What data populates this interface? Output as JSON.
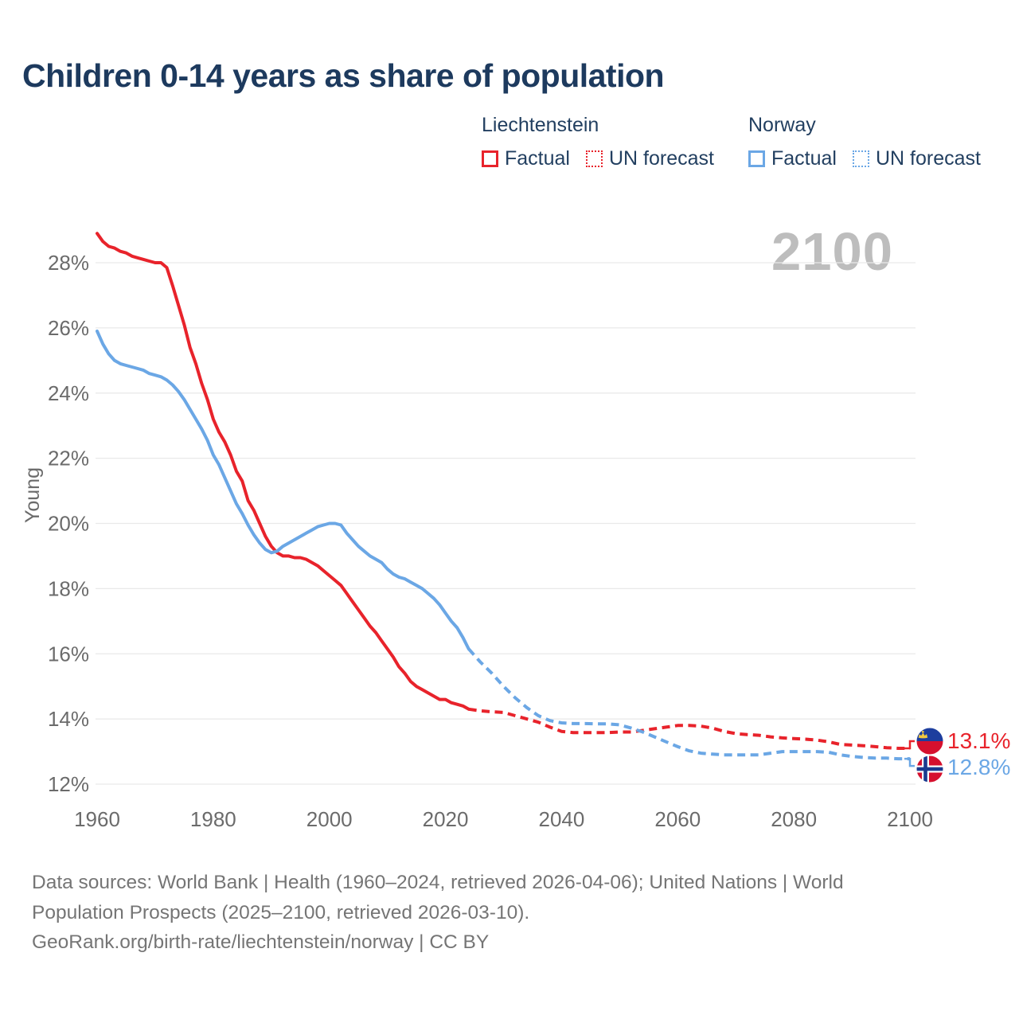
{
  "header": {
    "title": "Children 0-14 years as share of population"
  },
  "legend": {
    "liechtenstein": {
      "country": "Liechtenstein",
      "factual_label": "Factual",
      "forecast_label": "UN forecast"
    },
    "norway": {
      "country": "Norway",
      "factual_label": "Factual",
      "forecast_label": "UN forecast"
    }
  },
  "watermark": "2100",
  "axes": {
    "y_title": "Young",
    "y_ticks": [
      {
        "value": 28,
        "label": "28%"
      },
      {
        "value": 26,
        "label": "26%"
      },
      {
        "value": 24,
        "label": "24%"
      },
      {
        "value": 22,
        "label": "22%"
      },
      {
        "value": 20,
        "label": "20%"
      },
      {
        "value": 18,
        "label": "18%"
      },
      {
        "value": 16,
        "label": "16%"
      },
      {
        "value": 14,
        "label": "14%"
      },
      {
        "value": 12,
        "label": "12%"
      }
    ],
    "x_ticks": [
      {
        "value": 1960,
        "label": "1960"
      },
      {
        "value": 1980,
        "label": "1980"
      },
      {
        "value": 2000,
        "label": "2000"
      },
      {
        "value": 2020,
        "label": "2020"
      },
      {
        "value": 2040,
        "label": "2040"
      },
      {
        "value": 2060,
        "label": "2060"
      },
      {
        "value": 2080,
        "label": "2080"
      },
      {
        "value": 2100,
        "label": "2100"
      }
    ]
  },
  "end_labels": {
    "liechtenstein": {
      "label": "13.1%",
      "flag": "liechtenstein-flag"
    },
    "norway": {
      "label": "12.8%",
      "flag": "norway-flag"
    }
  },
  "footer": {
    "lines": [
      "Data sources: World Bank | Health (1960–2024, retrieved 2026-04-06); United Nations | World",
      "Population Prospects (2025–2100, retrieved 2026-03-10).",
      "GeoRank.org/birth-rate/liechtenstein/norway | CC BY"
    ]
  },
  "colors": {
    "liechtenstein_line": "#e8232b",
    "norway_line": "#6ba7e5",
    "title_text": "#1d3a5e",
    "legend_text": "#223f60",
    "axis_text": "#6b6b6b",
    "gridline": "#e9e9e9",
    "watermark": "#bdbdbd",
    "footer_text": "#757575",
    "flag_li_blue": "#1d3e9e",
    "flag_li_red": "#d6102e",
    "flag_li_crown": "#f2c840",
    "flag_no_red": "#d6102e",
    "flag_no_navy": "#1b3a8f",
    "flag_no_white": "#ffffff"
  },
  "chart_data": {
    "type": "line",
    "title": "Children 0-14 years as share of population",
    "xlabel": "",
    "ylabel": "Young",
    "xlim": [
      1960,
      2100
    ],
    "ylim": [
      12,
      28
    ],
    "grid": true,
    "legend_position": "top-right",
    "series": [
      {
        "name": "Liechtenstein Factual",
        "style": "solid",
        "color": "#e8232b",
        "points": [
          [
            1960,
            28.9
          ],
          [
            1961,
            28.65
          ],
          [
            1962,
            28.5
          ],
          [
            1963,
            28.45
          ],
          [
            1964,
            28.35
          ],
          [
            1965,
            28.3
          ],
          [
            1966,
            28.2
          ],
          [
            1967,
            28.15
          ],
          [
            1968,
            28.1
          ],
          [
            1969,
            28.05
          ],
          [
            1970,
            28.0
          ],
          [
            1971,
            28.0
          ],
          [
            1972,
            27.85
          ],
          [
            1973,
            27.3
          ],
          [
            1974,
            26.7
          ],
          [
            1975,
            26.1
          ],
          [
            1976,
            25.4
          ],
          [
            1977,
            24.9
          ],
          [
            1978,
            24.3
          ],
          [
            1979,
            23.8
          ],
          [
            1980,
            23.2
          ],
          [
            1981,
            22.8
          ],
          [
            1982,
            22.5
          ],
          [
            1983,
            22.1
          ],
          [
            1984,
            21.6
          ],
          [
            1985,
            21.3
          ],
          [
            1986,
            20.7
          ],
          [
            1987,
            20.4
          ],
          [
            1988,
            20.0
          ],
          [
            1989,
            19.6
          ],
          [
            1990,
            19.3
          ],
          [
            1991,
            19.1
          ],
          [
            1992,
            19.0
          ],
          [
            1993,
            19.0
          ],
          [
            1994,
            18.95
          ],
          [
            1995,
            18.95
          ],
          [
            1996,
            18.9
          ],
          [
            1997,
            18.8
          ],
          [
            1998,
            18.7
          ],
          [
            1999,
            18.55
          ],
          [
            2000,
            18.4
          ],
          [
            2001,
            18.25
          ],
          [
            2002,
            18.1
          ],
          [
            2003,
            17.85
          ],
          [
            2004,
            17.6
          ],
          [
            2005,
            17.35
          ],
          [
            2006,
            17.1
          ],
          [
            2007,
            16.85
          ],
          [
            2008,
            16.65
          ],
          [
            2009,
            16.4
          ],
          [
            2010,
            16.15
          ],
          [
            2011,
            15.9
          ],
          [
            2012,
            15.6
          ],
          [
            2013,
            15.4
          ],
          [
            2014,
            15.15
          ],
          [
            2015,
            15.0
          ],
          [
            2016,
            14.9
          ],
          [
            2017,
            14.8
          ],
          [
            2018,
            14.7
          ],
          [
            2019,
            14.6
          ],
          [
            2020,
            14.6
          ],
          [
            2021,
            14.5
          ],
          [
            2022,
            14.45
          ],
          [
            2023,
            14.4
          ],
          [
            2024,
            14.3
          ]
        ]
      },
      {
        "name": "Liechtenstein UN forecast",
        "style": "dashed",
        "color": "#e8232b",
        "points": [
          [
            2024,
            14.3
          ],
          [
            2026,
            14.25
          ],
          [
            2028,
            14.22
          ],
          [
            2030,
            14.2
          ],
          [
            2032,
            14.1
          ],
          [
            2034,
            14.0
          ],
          [
            2036,
            13.9
          ],
          [
            2038,
            13.75
          ],
          [
            2040,
            13.62
          ],
          [
            2042,
            13.58
          ],
          [
            2044,
            13.58
          ],
          [
            2046,
            13.58
          ],
          [
            2048,
            13.58
          ],
          [
            2050,
            13.6
          ],
          [
            2052,
            13.6
          ],
          [
            2054,
            13.65
          ],
          [
            2056,
            13.7
          ],
          [
            2058,
            13.75
          ],
          [
            2060,
            13.8
          ],
          [
            2062,
            13.8
          ],
          [
            2064,
            13.78
          ],
          [
            2066,
            13.72
          ],
          [
            2068,
            13.62
          ],
          [
            2070,
            13.55
          ],
          [
            2072,
            13.52
          ],
          [
            2074,
            13.5
          ],
          [
            2076,
            13.45
          ],
          [
            2078,
            13.42
          ],
          [
            2080,
            13.4
          ],
          [
            2082,
            13.38
          ],
          [
            2084,
            13.35
          ],
          [
            2086,
            13.3
          ],
          [
            2088,
            13.22
          ],
          [
            2090,
            13.2
          ],
          [
            2092,
            13.18
          ],
          [
            2094,
            13.15
          ],
          [
            2096,
            13.12
          ],
          [
            2098,
            13.1
          ],
          [
            2100,
            13.1
          ]
        ]
      },
      {
        "name": "Norway Factual",
        "style": "solid",
        "color": "#6ba7e5",
        "points": [
          [
            1960,
            25.9
          ],
          [
            1961,
            25.5
          ],
          [
            1962,
            25.2
          ],
          [
            1963,
            25.0
          ],
          [
            1964,
            24.9
          ],
          [
            1965,
            24.85
          ],
          [
            1966,
            24.8
          ],
          [
            1967,
            24.75
          ],
          [
            1968,
            24.7
          ],
          [
            1969,
            24.6
          ],
          [
            1970,
            24.55
          ],
          [
            1971,
            24.5
          ],
          [
            1972,
            24.4
          ],
          [
            1973,
            24.25
          ],
          [
            1974,
            24.05
          ],
          [
            1975,
            23.8
          ],
          [
            1976,
            23.5
          ],
          [
            1977,
            23.2
          ],
          [
            1978,
            22.9
          ],
          [
            1979,
            22.55
          ],
          [
            1980,
            22.1
          ],
          [
            1981,
            21.8
          ],
          [
            1982,
            21.4
          ],
          [
            1983,
            21.0
          ],
          [
            1984,
            20.6
          ],
          [
            1985,
            20.3
          ],
          [
            1986,
            19.95
          ],
          [
            1987,
            19.65
          ],
          [
            1988,
            19.4
          ],
          [
            1989,
            19.2
          ],
          [
            1990,
            19.1
          ],
          [
            1991,
            19.15
          ],
          [
            1992,
            19.3
          ],
          [
            1993,
            19.4
          ],
          [
            1994,
            19.5
          ],
          [
            1995,
            19.6
          ],
          [
            1996,
            19.7
          ],
          [
            1997,
            19.8
          ],
          [
            1998,
            19.9
          ],
          [
            1999,
            19.95
          ],
          [
            2000,
            20.0
          ],
          [
            2001,
            20.0
          ],
          [
            2002,
            19.95
          ],
          [
            2003,
            19.7
          ],
          [
            2004,
            19.5
          ],
          [
            2005,
            19.3
          ],
          [
            2006,
            19.15
          ],
          [
            2007,
            19.0
          ],
          [
            2008,
            18.9
          ],
          [
            2009,
            18.8
          ],
          [
            2010,
            18.6
          ],
          [
            2011,
            18.45
          ],
          [
            2012,
            18.35
          ],
          [
            2013,
            18.3
          ],
          [
            2014,
            18.2
          ],
          [
            2015,
            18.1
          ],
          [
            2016,
            18.0
          ],
          [
            2017,
            17.85
          ],
          [
            2018,
            17.7
          ],
          [
            2019,
            17.5
          ],
          [
            2020,
            17.25
          ],
          [
            2021,
            17.0
          ],
          [
            2022,
            16.8
          ],
          [
            2023,
            16.5
          ],
          [
            2024,
            16.15
          ]
        ]
      },
      {
        "name": "Norway UN forecast",
        "style": "dashed",
        "color": "#6ba7e5",
        "points": [
          [
            2024,
            16.15
          ],
          [
            2026,
            15.75
          ],
          [
            2028,
            15.4
          ],
          [
            2030,
            15.0
          ],
          [
            2032,
            14.65
          ],
          [
            2034,
            14.35
          ],
          [
            2036,
            14.1
          ],
          [
            2038,
            13.95
          ],
          [
            2040,
            13.88
          ],
          [
            2042,
            13.86
          ],
          [
            2044,
            13.86
          ],
          [
            2046,
            13.85
          ],
          [
            2048,
            13.85
          ],
          [
            2050,
            13.82
          ],
          [
            2052,
            13.72
          ],
          [
            2054,
            13.6
          ],
          [
            2056,
            13.45
          ],
          [
            2058,
            13.3
          ],
          [
            2060,
            13.15
          ],
          [
            2062,
            13.02
          ],
          [
            2064,
            12.95
          ],
          [
            2066,
            12.92
          ],
          [
            2068,
            12.9
          ],
          [
            2070,
            12.9
          ],
          [
            2072,
            12.9
          ],
          [
            2074,
            12.9
          ],
          [
            2076,
            12.95
          ],
          [
            2078,
            13.0
          ],
          [
            2080,
            13.0
          ],
          [
            2082,
            13.0
          ],
          [
            2084,
            13.0
          ],
          [
            2086,
            12.98
          ],
          [
            2088,
            12.9
          ],
          [
            2090,
            12.85
          ],
          [
            2092,
            12.82
          ],
          [
            2094,
            12.8
          ],
          [
            2096,
            12.8
          ],
          [
            2098,
            12.78
          ],
          [
            2100,
            12.78
          ]
        ]
      }
    ],
    "end_values": {
      "liechtenstein": 13.1,
      "norway": 12.8
    }
  }
}
